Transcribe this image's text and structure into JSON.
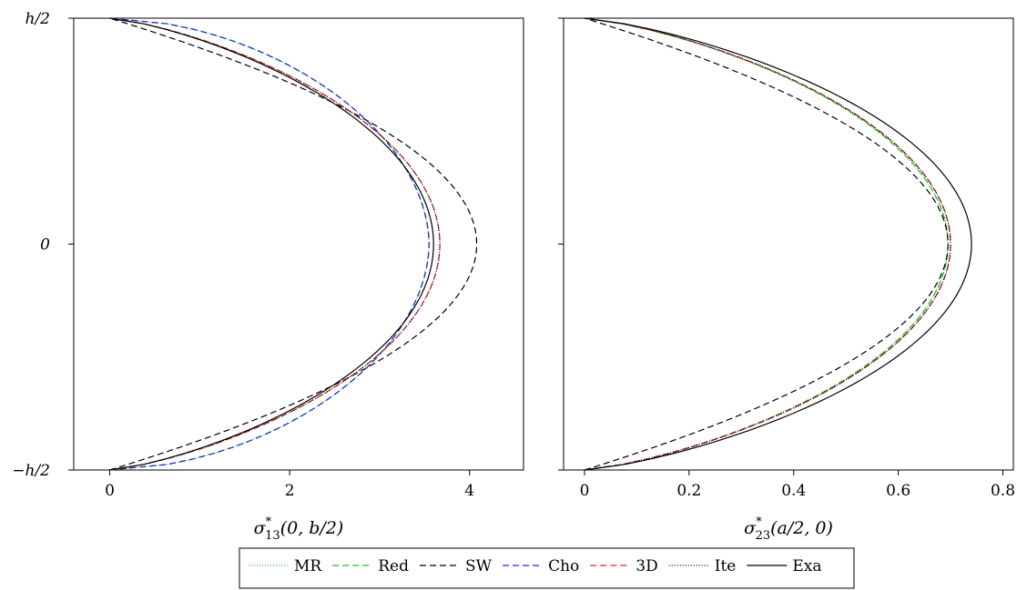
{
  "chart_data": [
    {
      "type": "line",
      "xlabel": "σ*13(0, b/2)",
      "xlabel_parts": {
        "symbol": "σ",
        "sup": "*",
        "sub": "13",
        "args": "(0, b/2)"
      },
      "ylabel": "",
      "xlim": [
        -0.4,
        4.6
      ],
      "xticks": [
        0,
        2,
        4
      ],
      "xtick_labels": [
        "0",
        "2",
        "4"
      ],
      "ylim": [
        -0.5,
        0.5
      ],
      "yticks": [
        -0.5,
        0,
        0.5
      ],
      "ytick_labels": [
        "−h/2",
        "0",
        "h/2"
      ],
      "grid": false,
      "series": [
        {
          "name": "MR",
          "peak": 3.55,
          "shape": "flat"
        },
        {
          "name": "Red",
          "peak": 3.55,
          "shape": "flat"
        },
        {
          "name": "SW",
          "peak": 4.08,
          "shape": "parabola"
        },
        {
          "name": "Cho",
          "peak": 3.55,
          "shape": "flat"
        },
        {
          "name": "3D",
          "peak": 3.67,
          "shape": "mid"
        },
        {
          "name": "Ite",
          "peak": 3.67,
          "shape": "mid"
        },
        {
          "name": "Exa",
          "peak": 3.6,
          "shape": "mid"
        }
      ]
    },
    {
      "type": "line",
      "xlabel": "σ*23(a/2, 0)",
      "xlabel_parts": {
        "symbol": "σ",
        "sup": "*",
        "sub": "23",
        "args": "(a/2, 0)"
      },
      "ylabel": "",
      "xlim": [
        -0.04,
        0.82
      ],
      "xticks": [
        0,
        0.2,
        0.4,
        0.6,
        0.8
      ],
      "xtick_labels": [
        "0",
        "0.2",
        "0.4",
        "0.6",
        "0.8"
      ],
      "ylim": [
        -0.5,
        0.5
      ],
      "yticks": [
        -0.5,
        0,
        0.5
      ],
      "ytick_labels": [
        "",
        "",
        ""
      ],
      "grid": false,
      "series": [
        {
          "name": "MR",
          "peak": 0.695,
          "shape": "mid"
        },
        {
          "name": "Red",
          "peak": 0.695,
          "shape": "mid"
        },
        {
          "name": "SW",
          "peak": 0.695,
          "shape": "parabola"
        },
        {
          "name": "Cho",
          "peak": 0.7,
          "shape": "mid"
        },
        {
          "name": "3D",
          "peak": 0.7,
          "shape": "mid"
        },
        {
          "name": "Ite",
          "peak": 0.7,
          "shape": "mid"
        },
        {
          "name": "Exa",
          "peak": 0.74,
          "shape": "mid"
        }
      ]
    }
  ],
  "legend": {
    "placement": "bottom",
    "entries": [
      {
        "name": "MR",
        "color": "#33cc33",
        "dash": "1,2"
      },
      {
        "name": "Red",
        "color": "#22bb22",
        "dash": "7,4"
      },
      {
        "name": "SW",
        "color": "#000000",
        "dash": "7,4"
      },
      {
        "name": "Cho",
        "color": "#2222ee",
        "dash": "7,4"
      },
      {
        "name": "3D",
        "color": "#ee2222",
        "dash": "7,4"
      },
      {
        "name": "Ite",
        "color": "#000000",
        "dash": "1,2"
      },
      {
        "name": "Exa",
        "color": "#000000",
        "dash": ""
      }
    ]
  }
}
